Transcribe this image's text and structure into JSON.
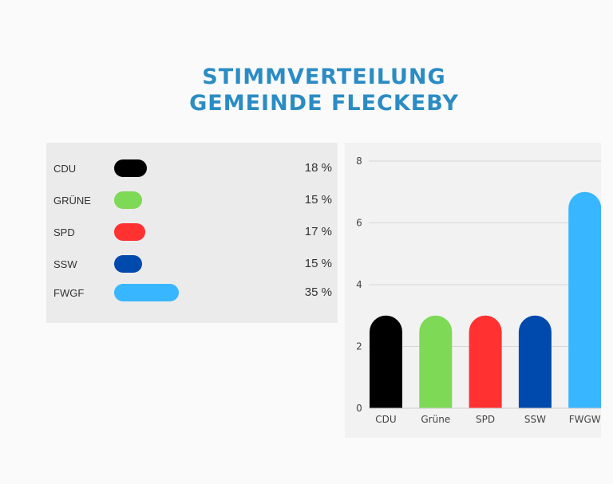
{
  "title_line1": "STIMMVERTEILUNG",
  "title_line2": "GEMEINDE FLECKEBY",
  "legend": [
    {
      "label": "CDU",
      "percent": 18,
      "percent_label": "18 %",
      "color": "#000000"
    },
    {
      "label": "GRÜNE",
      "percent": 15,
      "percent_label": "15 %",
      "color": "#7ed957"
    },
    {
      "label": "SPD",
      "percent": 17,
      "percent_label": "17 %",
      "color": "#ff3131"
    },
    {
      "label": "SSW",
      "percent": 15,
      "percent_label": "15 %",
      "color": "#004aad"
    },
    {
      "label": "FWGF",
      "percent": 35,
      "percent_label": "35 %",
      "color": "#38b6ff"
    }
  ],
  "chart_data": {
    "type": "bar",
    "categories": [
      "CDU",
      "Grüne",
      "SPD",
      "SSW",
      "FWGW"
    ],
    "values": [
      3,
      3,
      3,
      3,
      7
    ],
    "colors": [
      "#000000",
      "#7ed957",
      "#ff3131",
      "#004aad",
      "#38b6ff"
    ],
    "ylim": [
      0,
      8
    ],
    "yticks": [
      0,
      2,
      4,
      6,
      8
    ],
    "grid": true,
    "xlabel": "",
    "ylabel": ""
  }
}
